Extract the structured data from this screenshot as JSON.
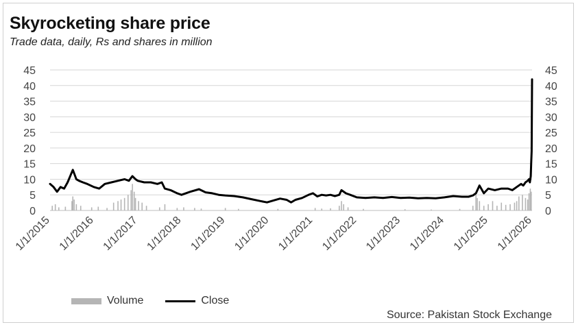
{
  "chart_data": {
    "type": "line",
    "title": "Skyrocketing share price",
    "subtitle": "Trade data, daily, Rs and shares in million",
    "source": "Source: Pakistan Stock Exchange",
    "ylim": [
      0,
      45
    ],
    "yticks": [
      "0",
      "5",
      "10",
      "15",
      "20",
      "25",
      "30",
      "35",
      "40",
      "45"
    ],
    "y2lim": [
      0,
      45
    ],
    "y2ticks": [
      "0",
      "5",
      "10",
      "15",
      "20",
      "25",
      "30",
      "35",
      "40",
      "45"
    ],
    "grid": true,
    "legend_position": "bottom-left",
    "xlim": [
      2015.0,
      2026.0
    ],
    "x_ticks": [
      {
        "value": 2015,
        "label": "1/1/2015"
      },
      {
        "value": 2016,
        "label": "1/1/2016"
      },
      {
        "value": 2017,
        "label": "1/1/2017"
      },
      {
        "value": 2018,
        "label": "1/1/2018"
      },
      {
        "value": 2019,
        "label": "1/1/2019"
      },
      {
        "value": 2020,
        "label": "1/1/2020"
      },
      {
        "value": 2021,
        "label": "1/1/2021"
      },
      {
        "value": 2022,
        "label": "1/1/2022"
      },
      {
        "value": 2023,
        "label": "1/1/2023"
      },
      {
        "value": 2024,
        "label": "1/1/2024"
      },
      {
        "value": 2025,
        "label": "1/1/2025"
      },
      {
        "value": 2026,
        "label": "1/1/2026"
      }
    ],
    "series": [
      {
        "name": "Close",
        "type": "line",
        "color": "#000000",
        "axis": "right",
        "x": [
          2015.0,
          2015.08,
          2015.16,
          2015.24,
          2015.32,
          2015.4,
          2015.46,
          2015.52,
          2015.56,
          2015.6,
          2015.66,
          2015.75,
          2015.85,
          2016.0,
          2016.12,
          2016.25,
          2016.4,
          2016.55,
          2016.7,
          2016.8,
          2016.88,
          2016.95,
          2017.0,
          2017.15,
          2017.3,
          2017.45,
          2017.55,
          2017.62,
          2017.75,
          2017.9,
          2018.0,
          2018.2,
          2018.4,
          2018.55,
          2018.7,
          2018.85,
          2019.0,
          2019.2,
          2019.4,
          2019.6,
          2019.8,
          2019.95,
          2020.1,
          2020.25,
          2020.4,
          2020.5,
          2020.6,
          2020.75,
          2020.9,
          2021.0,
          2021.1,
          2021.2,
          2021.3,
          2021.4,
          2021.5,
          2021.6,
          2021.65,
          2021.75,
          2021.85,
          2022.0,
          2022.2,
          2022.4,
          2022.6,
          2022.8,
          2023.0,
          2023.2,
          2023.4,
          2023.6,
          2023.8,
          2024.0,
          2024.2,
          2024.4,
          2024.55,
          2024.65,
          2024.72,
          2024.8,
          2024.9,
          2025.0,
          2025.15,
          2025.3,
          2025.45,
          2025.55,
          2025.65,
          2025.75,
          2025.8,
          2025.85,
          2025.9,
          2025.93,
          2025.95,
          2025.97,
          2025.98,
          2025.99,
          2026.0
        ],
        "values": [
          8.5,
          7.5,
          6.0,
          7.5,
          7.0,
          9.0,
          11.0,
          13.0,
          11.5,
          10.0,
          9.5,
          9.0,
          8.5,
          7.5,
          7.0,
          8.5,
          9.0,
          9.5,
          10.0,
          9.5,
          11.0,
          10.0,
          9.5,
          9.0,
          9.0,
          8.5,
          9.0,
          7.0,
          6.5,
          5.5,
          5.0,
          6.0,
          6.8,
          5.8,
          5.5,
          5.0,
          4.8,
          4.6,
          4.2,
          3.6,
          3.0,
          2.6,
          3.2,
          3.8,
          3.4,
          2.6,
          3.4,
          4.0,
          5.0,
          5.5,
          4.5,
          5.0,
          4.8,
          5.0,
          4.6,
          5.0,
          6.5,
          5.5,
          5.0,
          4.2,
          4.0,
          4.2,
          4.0,
          4.3,
          4.0,
          4.1,
          3.9,
          4.0,
          3.9,
          4.2,
          4.6,
          4.4,
          4.4,
          4.8,
          5.5,
          8.0,
          5.5,
          7.0,
          6.5,
          7.0,
          7.0,
          6.5,
          7.5,
          8.5,
          8.0,
          9.0,
          9.5,
          10.0,
          9.0,
          11.0,
          15.0,
          19.0,
          42.0
        ]
      },
      {
        "name": "Volume",
        "type": "bar",
        "color": "#b5b5b5",
        "axis": "left",
        "x": [
          2015.05,
          2015.12,
          2015.2,
          2015.35,
          2015.5,
          2015.52,
          2015.55,
          2015.6,
          2015.7,
          2015.95,
          2016.1,
          2016.3,
          2016.45,
          2016.55,
          2016.62,
          2016.7,
          2016.78,
          2016.85,
          2016.88,
          2016.92,
          2016.95,
          2017.02,
          2017.1,
          2017.2,
          2017.5,
          2017.62,
          2017.9,
          2018.05,
          2018.3,
          2018.45,
          2019.0,
          2019.3,
          2020.2,
          2021.05,
          2021.2,
          2021.4,
          2021.6,
          2021.65,
          2021.7,
          2021.8,
          2022.15,
          2023.1,
          2023.7,
          2024.35,
          2024.65,
          2024.72,
          2024.75,
          2024.8,
          2024.9,
          2025.0,
          2025.1,
          2025.2,
          2025.3,
          2025.4,
          2025.5,
          2025.6,
          2025.65,
          2025.7,
          2025.78,
          2025.85,
          2025.9,
          2025.93,
          2025.96,
          2025.98
        ],
        "values": [
          1.5,
          2.0,
          1.0,
          1.2,
          3.0,
          4.5,
          3.5,
          2.0,
          1.5,
          1.0,
          1.2,
          0.8,
          2.5,
          3.0,
          3.5,
          4.0,
          5.0,
          6.5,
          8.5,
          6.0,
          4.0,
          3.0,
          2.5,
          1.5,
          1.0,
          2.0,
          0.8,
          1.0,
          0.8,
          0.6,
          0.8,
          0.5,
          0.5,
          0.8,
          0.6,
          0.7,
          1.5,
          3.0,
          2.0,
          1.0,
          0.5,
          0.4,
          0.3,
          0.5,
          1.5,
          5.0,
          4.0,
          3.0,
          1.5,
          2.0,
          3.0,
          1.5,
          2.5,
          1.8,
          2.0,
          2.5,
          3.0,
          4.5,
          5.0,
          4.0,
          3.5,
          5.5,
          7.0,
          6.0
        ]
      }
    ]
  }
}
